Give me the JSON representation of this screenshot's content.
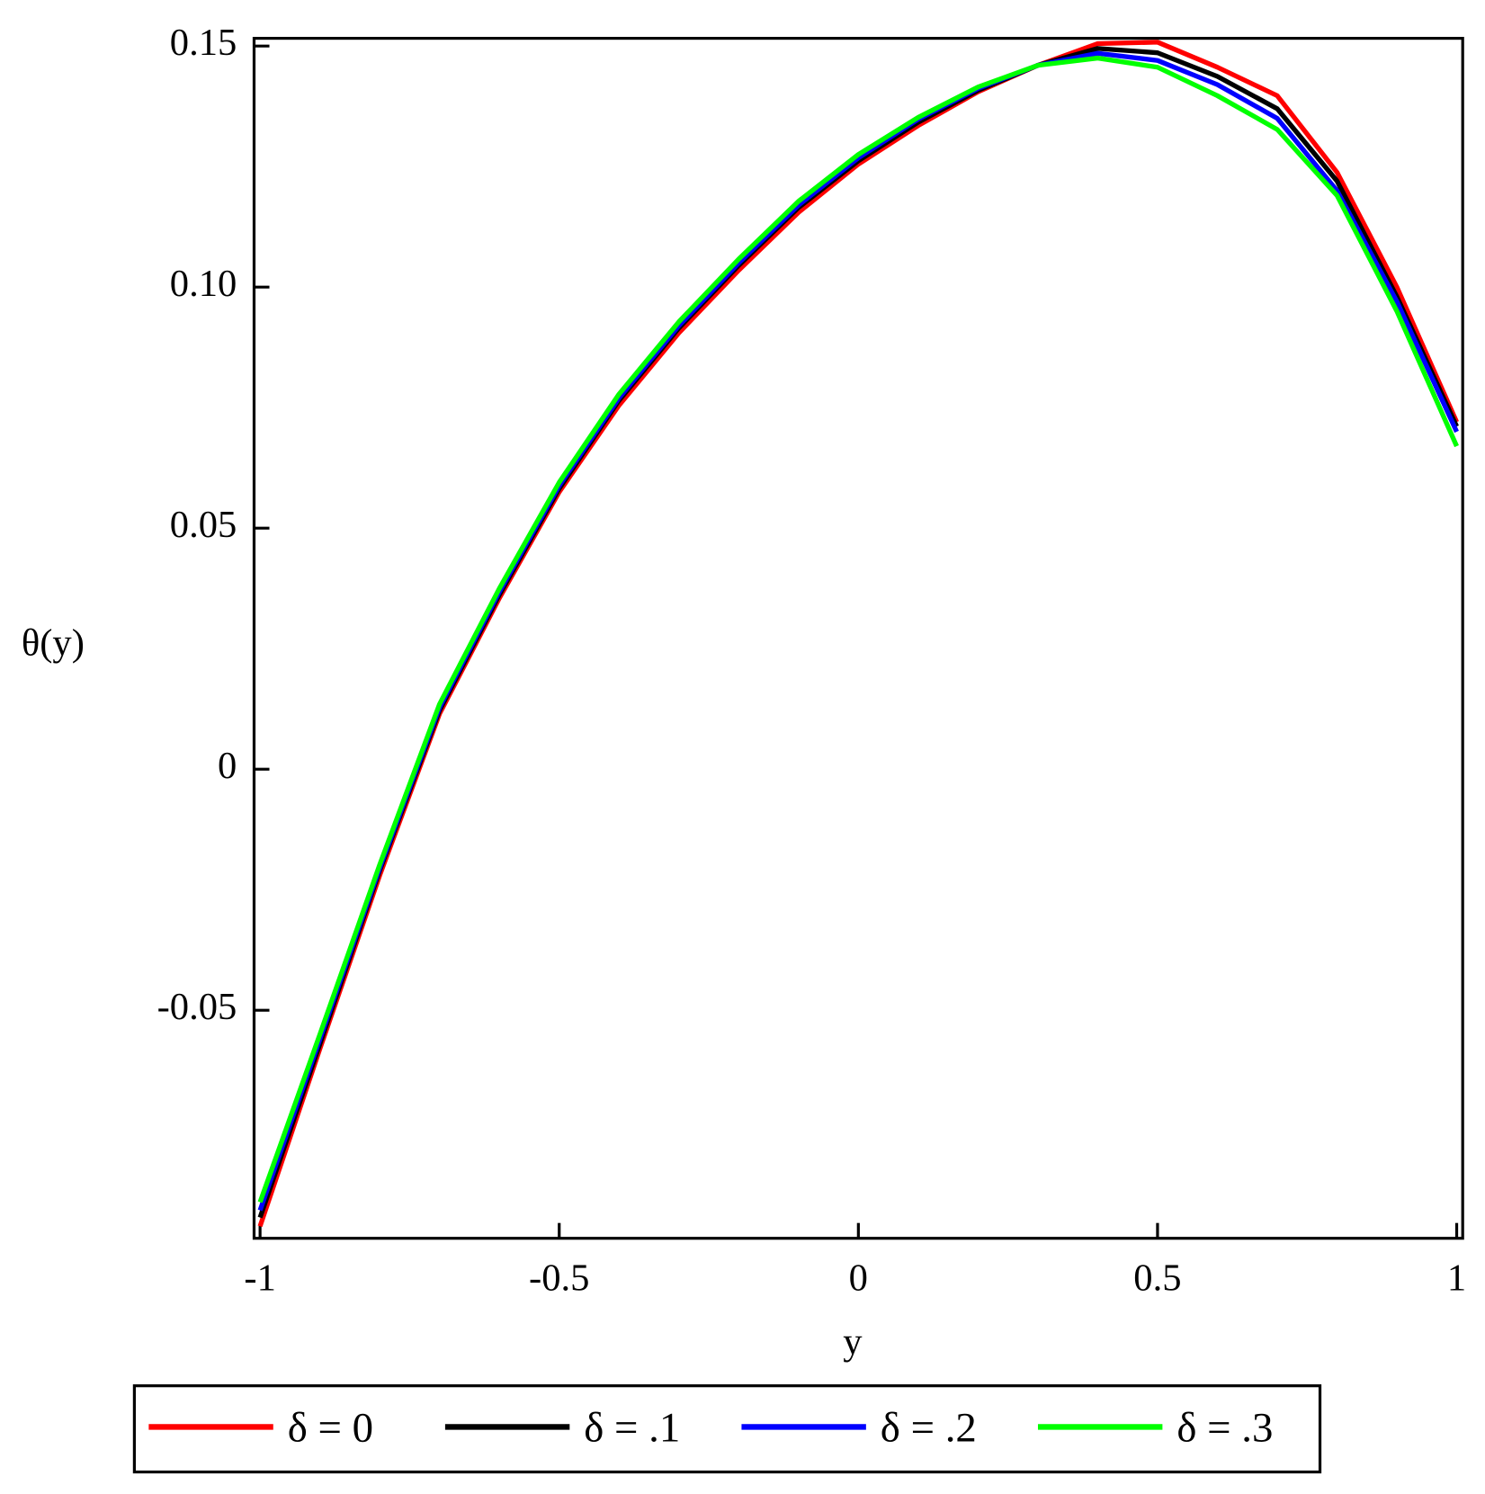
{
  "chart_data": {
    "type": "line",
    "xlabel": "y",
    "ylabel": "θ(y)",
    "x": [
      -1,
      -0.9,
      -0.8,
      -0.7,
      -0.6,
      -0.5,
      -0.4,
      -0.3,
      -0.2,
      -0.1,
      0,
      0.1,
      0.2,
      0.3,
      0.4,
      0.5,
      0.6,
      0.7,
      0.8,
      0.9,
      1
    ],
    "series": [
      {
        "name": "δ = 0",
        "color": "#ff0000",
        "values": [
          -0.0948,
          -0.058,
          -0.022,
          0.0115,
          0.0355,
          0.0575,
          0.0755,
          0.0905,
          0.1035,
          0.1155,
          0.1255,
          0.1335,
          0.1405,
          0.146,
          0.1505,
          0.1508,
          0.1456,
          0.1397,
          0.1238,
          0.1,
          0.072
        ]
      },
      {
        "name": "δ = .1",
        "color": "#000000",
        "values": [
          -0.093,
          -0.057,
          -0.021,
          0.0122,
          0.0362,
          0.0582,
          0.0765,
          0.0915,
          0.1045,
          0.1165,
          0.1262,
          0.1342,
          0.1408,
          0.146,
          0.1495,
          0.1486,
          0.1437,
          0.137,
          0.122,
          0.098,
          0.0711
        ]
      },
      {
        "name": "δ = .2",
        "color": "#0000ff",
        "values": [
          -0.0915,
          -0.056,
          -0.0205,
          0.0128,
          0.0368,
          0.0588,
          0.077,
          0.092,
          0.105,
          0.117,
          0.1268,
          0.1348,
          0.1412,
          0.146,
          0.1485,
          0.147,
          0.142,
          0.135,
          0.12,
          0.097,
          0.07
        ]
      },
      {
        "name": "δ = .3",
        "color": "#00ff00",
        "values": [
          -0.0898,
          -0.055,
          -0.0198,
          0.0135,
          0.0375,
          0.0595,
          0.0778,
          0.0928,
          0.1058,
          0.1178,
          0.1275,
          0.1352,
          0.1415,
          0.146,
          0.1475,
          0.1456,
          0.1397,
          0.1327,
          0.119,
          0.095,
          0.067
        ]
      }
    ],
    "xlim": [
      -1.01,
      1.01
    ],
    "xticks": [
      -1,
      -0.5,
      0,
      0.5,
      1
    ],
    "ylim": [
      -0.0973,
      0.1516
    ],
    "yticks": [
      -0.05,
      0,
      0.05,
      {
        "value": 0.1,
        "label": "0.10"
      },
      0.15
    ],
    "grid": false,
    "legend": "bottom"
  }
}
